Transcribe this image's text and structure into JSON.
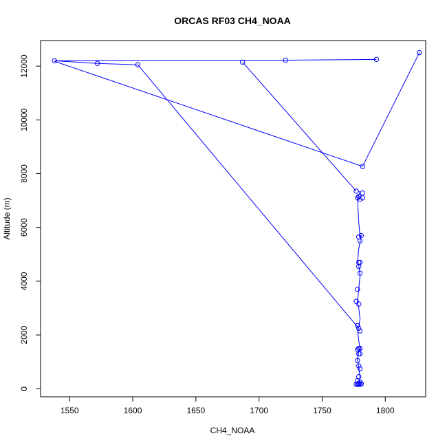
{
  "chart_data": {
    "type": "line",
    "title": "ORCAS RF03 CH4_NOAA",
    "xlabel": "CH4_NOAA",
    "ylabel": "Altitude (m)",
    "xlim": [
      1527,
      1832
    ],
    "ylim": [
      -300,
      12950
    ],
    "x_ticks": [
      1550,
      1600,
      1650,
      1700,
      1750,
      1800
    ],
    "y_ticks": [
      0,
      2000,
      4000,
      6000,
      8000,
      10000,
      12000
    ],
    "grid": false,
    "legend": "none",
    "color": "#0000ff",
    "series": [
      {
        "x": [
          1778,
          1779,
          1780,
          1778,
          1779,
          1780,
          1779,
          1778,
          1779,
          1780,
          1779,
          1778,
          1779,
          1780,
          1779,
          1778,
          1779,
          1780,
          1779,
          1778,
          1779,
          1780,
          1779,
          1778,
          1779,
          1779,
          1779,
          1780,
          1778,
          1779,
          1779,
          1780,
          1780,
          1778,
          1779,
          1780,
          1781,
          1779,
          1778,
          1777,
          1779,
          1781,
          1782,
          1781,
          1779,
          1777,
          1687,
          1538,
          1721,
          1793,
          1827
        ],
        "y": [
          170,
          160,
          200,
          240,
          300,
          450,
          650,
          850,
          1050,
          1300,
          1450,
          1500,
          1400,
          1200,
          900,
          700,
          500,
          300,
          180,
          220,
          400,
          700,
          1000,
          1300,
          2100,
          2250,
          2350,
          2200,
          2300,
          1604,
          2050,
          3250,
          3700,
          3200,
          3800,
          4300,
          4550,
          4700,
          4650,
          5500,
          5650,
          5700,
          7100,
          7300,
          7200,
          7050,
          7350,
          12150,
          12200,
          12250,
          12500
        ],
        "x2": [],
        "y2": []
      }
    ],
    "segments": [
      {
        "x": [
          1778,
          1604,
          1572,
          1538,
          1721,
          1793
        ],
        "y": [
          2300,
          12050,
          12100,
          12200,
          12220,
          12250
        ]
      },
      {
        "x": [
          1782,
          1538
        ],
        "y": [
          8270,
          12180
        ]
      },
      {
        "x": [
          1687,
          1777
        ],
        "y": [
          12150,
          7350
        ]
      },
      {
        "x": [
          1782,
          1827
        ],
        "y": [
          8270,
          12500
        ]
      }
    ],
    "points": [
      {
        "x": 1538,
        "y": 12200
      },
      {
        "x": 1572,
        "y": 12100
      },
      {
        "x": 1604,
        "y": 12050
      },
      {
        "x": 1687,
        "y": 12150
      },
      {
        "x": 1721,
        "y": 12220
      },
      {
        "x": 1793,
        "y": 12250
      },
      {
        "x": 1827,
        "y": 12500
      },
      {
        "x": 1782,
        "y": 8270
      },
      {
        "x": 1777,
        "y": 7350
      },
      {
        "x": 1779,
        "y": 7150
      },
      {
        "x": 1782,
        "y": 7280
      },
      {
        "x": 1782,
        "y": 7100
      },
      {
        "x": 1778,
        "y": 7100
      },
      {
        "x": 1780,
        "y": 7050
      },
      {
        "x": 1781,
        "y": 5700
      },
      {
        "x": 1779,
        "y": 5650
      },
      {
        "x": 1780,
        "y": 5500
      },
      {
        "x": 1779,
        "y": 4700
      },
      {
        "x": 1780,
        "y": 4700
      },
      {
        "x": 1779,
        "y": 4550
      },
      {
        "x": 1780,
        "y": 4300
      },
      {
        "x": 1778,
        "y": 3700
      },
      {
        "x": 1777,
        "y": 3250
      },
      {
        "x": 1779,
        "y": 3150
      },
      {
        "x": 1778,
        "y": 2350
      },
      {
        "x": 1779,
        "y": 2250
      },
      {
        "x": 1780,
        "y": 2150
      },
      {
        "x": 1779,
        "y": 1500
      },
      {
        "x": 1778,
        "y": 1450
      },
      {
        "x": 1780,
        "y": 1300
      },
      {
        "x": 1778,
        "y": 1050
      },
      {
        "x": 1779,
        "y": 850
      },
      {
        "x": 1780,
        "y": 750
      },
      {
        "x": 1779,
        "y": 450
      },
      {
        "x": 1778,
        "y": 300
      },
      {
        "x": 1780,
        "y": 250
      },
      {
        "x": 1777,
        "y": 170
      },
      {
        "x": 1778,
        "y": 160
      },
      {
        "x": 1779,
        "y": 160
      },
      {
        "x": 1780,
        "y": 170
      },
      {
        "x": 1781,
        "y": 180
      },
      {
        "x": 1779,
        "y": 200
      },
      {
        "x": 1780,
        "y": 1500
      },
      {
        "x": 1779,
        "y": 1300
      }
    ],
    "vertical_trace": {
      "x": [
        1779,
        1780,
        1779,
        1778,
        1779,
        1780,
        1779,
        1778,
        1779,
        1780,
        1779,
        1778,
        1779,
        1780,
        1779,
        1778,
        1779,
        1781,
        1780,
        1779,
        1778,
        1780,
        1779
      ],
      "y": [
        160,
        400,
        800,
        1100,
        1400,
        1500,
        1800,
        2200,
        2300,
        2600,
        3000,
        3250,
        3700,
        4200,
        4600,
        4700,
        5200,
        5700,
        5650,
        6200,
        7100,
        7300,
        7350
      ]
    }
  }
}
